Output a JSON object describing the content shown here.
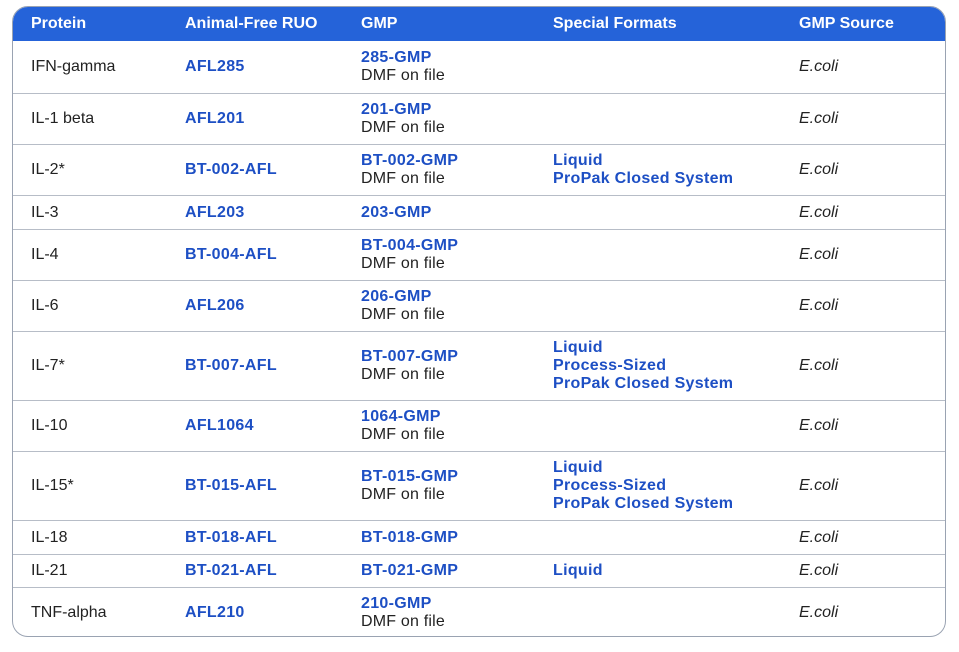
{
  "headers": [
    "Protein",
    "Animal-Free RUO",
    "GMP",
    "Special Formats",
    "GMP Source"
  ],
  "rows": [
    {
      "protein": "IFN-gamma",
      "ruo": "AFL285",
      "gmp": "285-GMP",
      "gmp_note": "DMF on file",
      "formats": [],
      "source": "E.coli"
    },
    {
      "protein": "IL-1 beta",
      "ruo": "AFL201",
      "gmp": "201-GMP",
      "gmp_note": "DMF on file",
      "formats": [],
      "source": "E.coli"
    },
    {
      "protein": "IL-2*",
      "ruo": "BT-002-AFL",
      "gmp": "BT-002-GMP",
      "gmp_note": "DMF on file",
      "formats": [
        "Liquid",
        "ProPak Closed System"
      ],
      "source": "E.coli"
    },
    {
      "protein": "IL-3",
      "ruo": "AFL203",
      "gmp": "203-GMP",
      "gmp_note": "",
      "formats": [],
      "source": "E.coli"
    },
    {
      "protein": "IL-4",
      "ruo": "BT-004-AFL",
      "gmp": "BT-004-GMP",
      "gmp_note": "DMF on file",
      "formats": [],
      "source": "E.coli"
    },
    {
      "protein": "IL-6",
      "ruo": "AFL206",
      "gmp": "206-GMP",
      "gmp_note": "DMF on file",
      "formats": [],
      "source": "E.coli"
    },
    {
      "protein": "IL-7*",
      "ruo": "BT-007-AFL",
      "gmp": "BT-007-GMP",
      "gmp_note": "DMF on file",
      "formats": [
        "Liquid",
        "Process-Sized",
        "ProPak Closed System"
      ],
      "source": "E.coli"
    },
    {
      "protein": "IL-10",
      "ruo": "AFL1064",
      "gmp": "1064-GMP",
      "gmp_note": "DMF on file",
      "formats": [],
      "source": "E.coli"
    },
    {
      "protein": "IL-15*",
      "ruo": "BT-015-AFL",
      "gmp": "BT-015-GMP",
      "gmp_note": "DMF on file",
      "formats": [
        "Liquid",
        "Process-Sized",
        "ProPak Closed System"
      ],
      "source": "E.coli"
    },
    {
      "protein": "IL-18",
      "ruo": "BT-018-AFL",
      "gmp": "BT-018-GMP",
      "gmp_note": "",
      "formats": [],
      "source": "E.coli"
    },
    {
      "protein": "IL-21",
      "ruo": "BT-021-AFL",
      "gmp": "BT-021-GMP",
      "gmp_note": "",
      "formats": [
        "Liquid"
      ],
      "source": "E.coli"
    },
    {
      "protein": "TNF-alpha",
      "ruo": "AFL210",
      "gmp": "210-GMP",
      "gmp_note": "DMF on file",
      "formats": [],
      "source": "E.coli"
    }
  ],
  "colors": {
    "header_bg": "#2563d9",
    "link": "#1d4fc4",
    "border": "#b7bdc7"
  }
}
